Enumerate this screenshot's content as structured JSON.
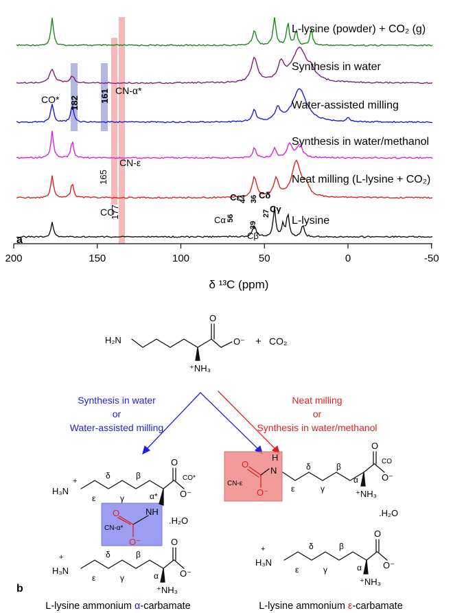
{
  "panel_a": {
    "label": "a",
    "x_axis_title": "δ ¹³C (ppm)",
    "x_ticks": [
      "200",
      "150",
      "100",
      "50",
      "0",
      "-50"
    ],
    "spectra": [
      {
        "label": "L-lysine (powder) + CO₂ (g)",
        "color": "#1a8a1a"
      },
      {
        "label": "Synthesis in water",
        "color": "#8a1a7a"
      },
      {
        "label": "Water-assisted milling",
        "color": "#1a1ae0"
      },
      {
        "label": "Synthesis in water/methanol",
        "color": "#e020e0"
      },
      {
        "label": "Neat milling (L-lysine + CO₂)",
        "color": "#e02020"
      },
      {
        "label": "L-lysine",
        "color": "#111111"
      }
    ],
    "annotations": {
      "co_star": "CO*",
      "v182": "182",
      "v161": "161",
      "cn_alpha_star": "CN-α*",
      "v165": "165",
      "cn_eps": "CN-ε",
      "co": "CO",
      "v177": "177",
      "ca": "Cα",
      "v56": "56",
      "ce": "Cε",
      "v44": "44",
      "v39": "39",
      "cb": "Cβ",
      "v36": "36",
      "cd": "Cδ",
      "v27": "27",
      "cg": "Cγ"
    },
    "highlight_colors": {
      "pink": "#f4a6a6",
      "blue": "#9aa0d8"
    }
  },
  "panel_b": {
    "label": "b",
    "reactant": {
      "h2n": "H₂N",
      "o": "O",
      "o_minus": "O⁻",
      "nh3": "⁺NH₃",
      "plus": "+",
      "co2": "CO₂"
    },
    "left_route": {
      "line1": "Synthesis in water",
      "line2": "or",
      "line3": "Water-assisted milling",
      "color": "#2020e0"
    },
    "right_route": {
      "line1": "Neat milling",
      "line2": "or",
      "line3": "Synthesis in water/methanol",
      "color": "#e02020"
    },
    "left_product": {
      "h3n": "H₃N",
      "plus": "+",
      "delta": "δ",
      "beta": "β",
      "eps": "ε",
      "gamma": "γ",
      "alpha_star": "α*",
      "o": "O",
      "o_minus": "O⁻",
      "co_star": "CO*",
      "nh": "NH",
      "carb_o": "O",
      "carb_o_minus": "O⁻",
      "cn_label": "CN-α*",
      "water": ".H₂O",
      "box_color": "#8c8cf0"
    },
    "left_lysine": {
      "h3n": "H₃N",
      "plus": "+",
      "delta": "δ",
      "beta": "β",
      "eps": "ε",
      "gamma": "γ",
      "alpha": "α",
      "o": "O",
      "o_minus": "O⁻",
      "nh3": "⁺NH₃"
    },
    "right_product": {
      "h": "H",
      "n": "N",
      "cn_label": "CN-ε",
      "carb_o": "O",
      "carb_o_minus": "O⁻",
      "delta": "δ",
      "beta": "β",
      "eps": "ε",
      "gamma": "γ",
      "alpha": "α",
      "o": "O",
      "o_minus": "O⁻",
      "co": "CO",
      "nh3": "⁺NH₃",
      "water": ".H₂O",
      "box_color": "#f08a8a"
    },
    "right_lysine": {
      "h3n": "H₃N",
      "plus": "+",
      "delta": "δ",
      "beta": "β",
      "eps": "ε",
      "gamma": "γ",
      "alpha": "α",
      "o": "O",
      "o_minus": "O⁻",
      "nh3": "⁺NH₃"
    },
    "left_caption": {
      "pre": "L-lysine ammonium ",
      "greek": "α",
      "post": "-carbamate",
      "greek_color": "#2020e0"
    },
    "right_caption": {
      "pre": "L-lysine ammonium ",
      "greek": "ε",
      "post": "-carbamate",
      "greek_color": "#e02020"
    }
  }
}
